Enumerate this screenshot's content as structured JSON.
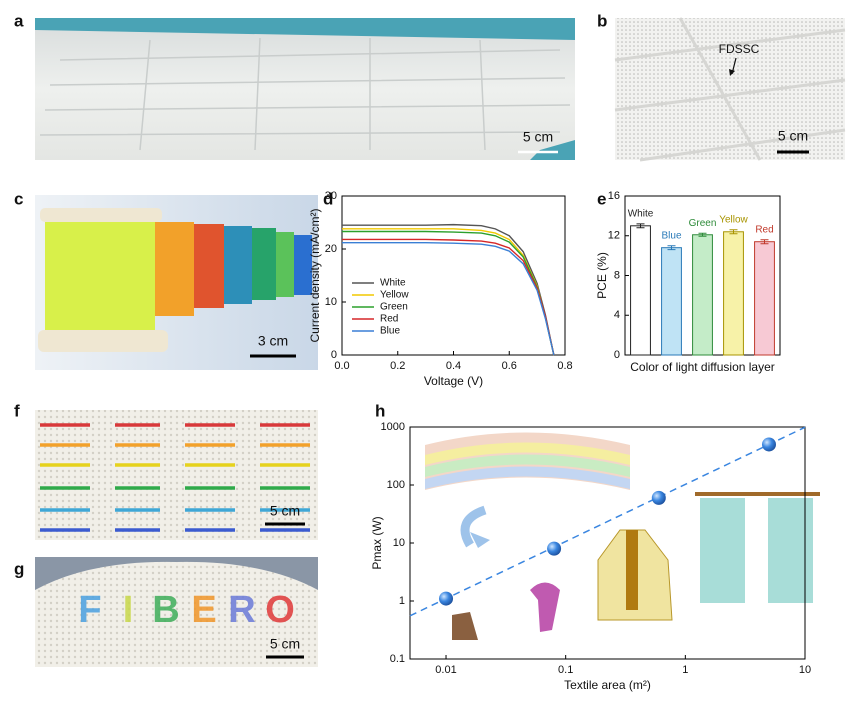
{
  "figure": {
    "panel_labels": [
      "a",
      "b",
      "c",
      "d",
      "e",
      "f",
      "g",
      "h"
    ],
    "scale_bars": {
      "a": "5 cm",
      "b": "5 cm",
      "c": "3 cm",
      "f": "5 cm",
      "g": "5 cm"
    },
    "annotation_b": "FDSSC",
    "knit_text": [
      "F",
      "I",
      "B",
      "E",
      "R",
      "O"
    ]
  },
  "chart_data": [
    {
      "type": "line",
      "xlabel": "Voltage (V)",
      "ylabel": "Current density (mA/cm²)",
      "x": [
        0,
        0.1,
        0.2,
        0.3,
        0.4,
        0.5,
        0.55,
        0.6,
        0.65,
        0.7,
        0.73,
        0.76
      ],
      "series": [
        {
          "name": "White",
          "color": "#555555",
          "values": [
            24.5,
            24.5,
            24.5,
            24.5,
            24.6,
            24.4,
            23.8,
            22.5,
            19.5,
            13.5,
            7.5,
            0
          ]
        },
        {
          "name": "Yellow",
          "color": "#f2c900",
          "values": [
            23.8,
            23.8,
            23.8,
            23.8,
            23.8,
            23.5,
            23,
            21.8,
            18.8,
            13,
            7,
            0
          ]
        },
        {
          "name": "Green",
          "color": "#2ca02c",
          "values": [
            23.3,
            23.3,
            23.3,
            23.3,
            23.2,
            23,
            22.5,
            21.3,
            18.5,
            12.8,
            7,
            0
          ]
        },
        {
          "name": "Red",
          "color": "#d62728",
          "values": [
            21.8,
            21.8,
            21.8,
            21.8,
            21.7,
            21.5,
            21.1,
            20.2,
            17.8,
            12.6,
            7.2,
            0
          ]
        },
        {
          "name": "Blue",
          "color": "#3a7fd5",
          "values": [
            21.2,
            21.2,
            21.2,
            21.2,
            21.1,
            20.9,
            20.5,
            19.6,
            17.2,
            12.2,
            6.8,
            0
          ]
        }
      ],
      "xlim": [
        0,
        0.8
      ],
      "xticks": [
        {
          "value": 0,
          "label": "0.0"
        },
        0.2,
        0.4,
        0.6,
        0.8
      ],
      "ylim": [
        0,
        30
      ],
      "yticks": [
        0,
        10,
        20,
        30
      ],
      "legend": "lower left"
    },
    {
      "type": "bar",
      "xlabel": "Color of light diffusion layer",
      "ylabel": "PCE (%)",
      "categories": [
        "White",
        "Blue",
        "Green",
        "Yellow",
        "Red"
      ],
      "values": [
        13.0,
        10.8,
        12.1,
        12.4,
        11.4
      ],
      "errors": [
        0.2,
        0.2,
        0.15,
        0.2,
        0.2
      ],
      "colors": [
        "#ffffff",
        "#bfe3f5",
        "#c4ecc8",
        "#f7f2a8",
        "#f7c9d4"
      ],
      "edgecolors": [
        "#222222",
        "#2a7ab8",
        "#2e8b3a",
        "#a89400",
        "#c0392b"
      ],
      "ylim": [
        0,
        16
      ],
      "yticks": [
        0,
        4,
        8,
        12,
        16
      ]
    },
    {
      "type": "scatter",
      "xlabel": "Textile area (m²)",
      "ylabel": "Pmax (W)",
      "x": [
        0.01,
        0.08,
        0.6,
        5
      ],
      "values": [
        1.1,
        8,
        60,
        500
      ],
      "color": "#3a86e0",
      "xscale": "log",
      "yscale": "log",
      "xlim": [
        0.005,
        10
      ],
      "xticks": [
        0.01,
        0.1,
        1,
        10
      ],
      "ylim": [
        0.1,
        1000
      ],
      "yticks": [
        0.1,
        1,
        10,
        100,
        1000
      ],
      "trend_line": "dashed"
    }
  ]
}
